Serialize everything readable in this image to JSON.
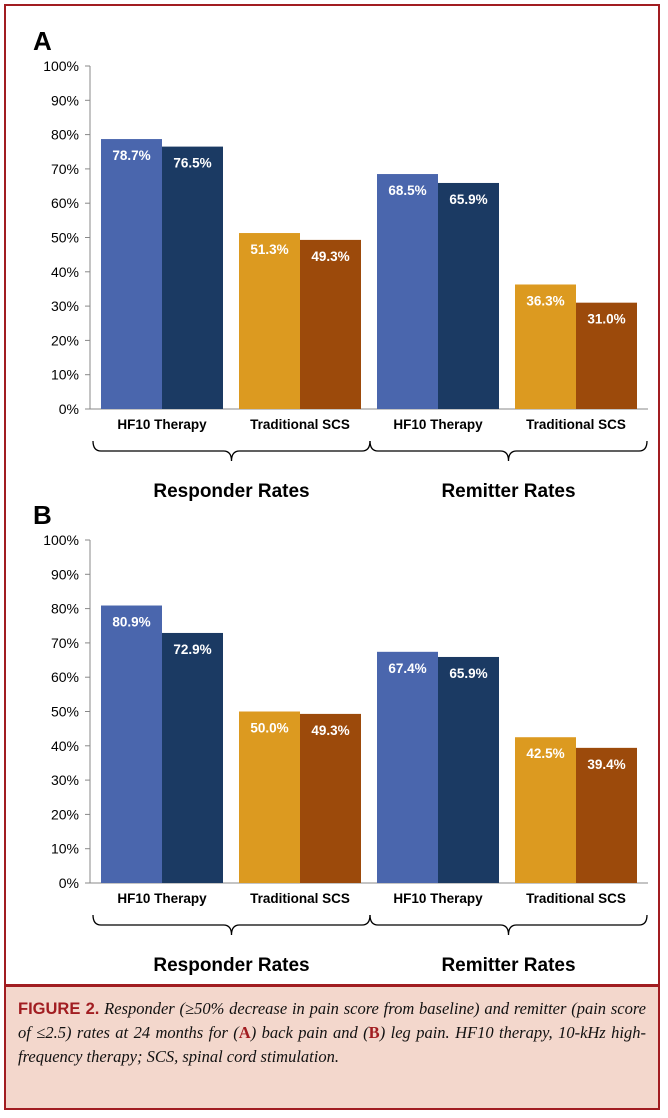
{
  "chart_data": [
    {
      "type": "bar",
      "panel": "A",
      "categories": [
        "HF10 Therapy",
        "Traditional SCS",
        "HF10 Therapy",
        "Traditional SCS"
      ],
      "groups": [
        "Responder Rates",
        "Remitter Rates"
      ],
      "values": [
        78.7,
        76.5,
        51.3,
        49.3,
        68.5,
        65.9,
        36.3,
        31.0
      ],
      "labels": [
        "78.7%",
        "76.5%",
        "51.3%",
        "49.3%",
        "68.5%",
        "65.9%",
        "36.3%",
        "31.0%"
      ],
      "yticks": [
        "0%",
        "10%",
        "20%",
        "30%",
        "40%",
        "50%",
        "60%",
        "70%",
        "80%",
        "90%",
        "100%"
      ],
      "ylim": [
        0,
        100
      ],
      "grid": false
    },
    {
      "type": "bar",
      "panel": "B",
      "categories": [
        "HF10 Therapy",
        "Traditional SCS",
        "HF10 Therapy",
        "Traditional SCS"
      ],
      "groups": [
        "Responder Rates",
        "Remitter Rates"
      ],
      "values": [
        80.9,
        72.9,
        50.0,
        49.3,
        67.4,
        65.9,
        42.5,
        39.4
      ],
      "labels": [
        "80.9%",
        "72.9%",
        "50.0%",
        "49.3%",
        "67.4%",
        "65.9%",
        "42.5%",
        "39.4%"
      ],
      "yticks": [
        "0%",
        "10%",
        "20%",
        "30%",
        "40%",
        "50%",
        "60%",
        "70%",
        "80%",
        "90%",
        "100%"
      ],
      "ylim": [
        0,
        100
      ],
      "grid": false
    }
  ],
  "colors": [
    "#4a66ad",
    "#1b3a63",
    "#dc9a20",
    "#9c4a0b"
  ],
  "caption": {
    "label": "FIGURE 2.",
    "part1": " Responder (≥50% decrease in pain score from baseline) and remitter (pain score of ≤2.5) rates at 24 months for (",
    "a": "A",
    "part2": ") back pain and (",
    "b": "B",
    "part3": ") leg pain. HF10 therapy, 10-kHz high-frequency therapy; SCS, spinal cord stimulation."
  }
}
